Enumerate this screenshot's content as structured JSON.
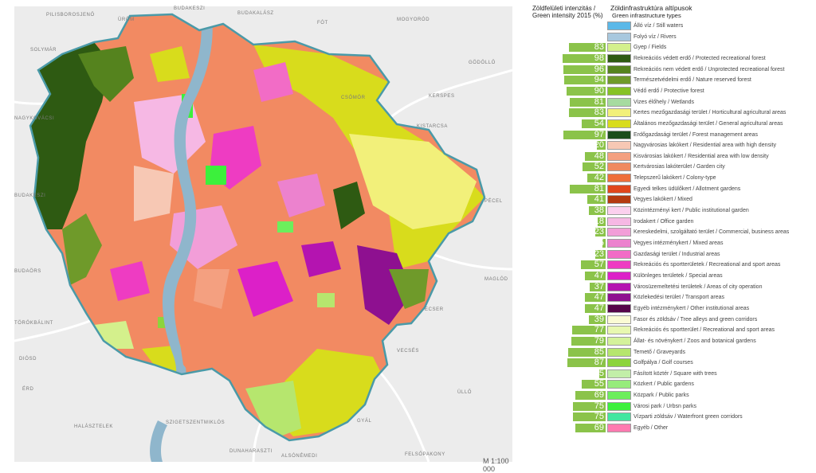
{
  "header": {
    "intensity_title": "Zöldfelületi intenzitás / Green intensity 2015 (%)",
    "types_title": "Zöldinfrastruktúra altípusok",
    "types_subtitle": "Green infrastructure types"
  },
  "scale": "M 1:100 000",
  "places": [
    "PILISBOROSJENŐ",
    "ÜRÖM",
    "BUDAKESZI",
    "BUDAKALÁSZ",
    "FÓT",
    "MOGYORÓD",
    "SOLYMÁR",
    "GÖDÖLLŐ",
    "NAGYKOVÁCSI",
    "CSÖMÖR",
    "KERSPES",
    "KISTARCSA",
    "BUDAKESZI",
    "PÉCEL",
    "BUDAÖRS",
    "MAGLÓD",
    "TÖRÖKBÁLINT",
    "ECSER",
    "DIÓSD",
    "VECSÉS",
    "ÉRD",
    "ÜLLŐ",
    "HALÁSZTELEK",
    "SZIGETSZENTMIKLÓS",
    "GYÁL",
    "DUNAHARASZTI",
    "FELSŐPAKONY",
    "ALSÓNÉMEDI"
  ],
  "legend": [
    {
      "value": null,
      "color": "#5bb8e8",
      "label": "Álló víz / Still waters"
    },
    {
      "value": null,
      "color": "#a8c8de",
      "label": "Folyó víz / Rivers"
    },
    {
      "value": 83,
      "color": "#d4f08c",
      "label": "Gyep / Fields"
    },
    {
      "value": 98,
      "color": "#2e5a12",
      "label": "Rekreációs védett erdő / Protected recreational forest"
    },
    {
      "value": 96,
      "color": "#55831e",
      "label": "Rekreációs nem védett erdő / Unprotected recreational forest"
    },
    {
      "value": 94,
      "color": "#6f9a2a",
      "label": "Természetvédelmi erdő / Nature reserved forest"
    },
    {
      "value": 90,
      "color": "#86c225",
      "label": "Védő erdő / Protective forest"
    },
    {
      "value": 81,
      "color": "#a7dba0",
      "label": "Vizes élőhely / Wetlands"
    },
    {
      "value": 83,
      "color": "#f2f07a",
      "label": "Kertes mezőgazdasági terület / Horticultural agricultural areas"
    },
    {
      "value": 54,
      "color": "#d8dc1c",
      "label": "Általános mezőgazdasági terület / General agricultural areas"
    },
    {
      "value": 97,
      "color": "#1b4e1b",
      "label": "Erdőgazdasági terület / Forest management areas"
    },
    {
      "value": 20,
      "color": "#f7c8b4",
      "label": "Nagyvárosias lakókert / Residential area with high density"
    },
    {
      "value": 48,
      "color": "#f4a080",
      "label": "Kisvárosias lakókert / Residential area with low density"
    },
    {
      "value": 52,
      "color": "#f08a60",
      "label": "Kertvárosias lakóterület / Garden city"
    },
    {
      "value": 42,
      "color": "#ee6e3a",
      "label": "Telepszerű lakókert / Colony-type"
    },
    {
      "value": 81,
      "color": "#e0461c",
      "label": "Egyedi telkes üdülőkert / Allotment gardens"
    },
    {
      "value": 41,
      "color": "#b43a10",
      "label": "Vegyes lakókert / Mixed"
    },
    {
      "value": 38,
      "color": "#fbd0ee",
      "label": "Közintézményi kert / Public institutional garden"
    },
    {
      "value": 18,
      "color": "#f6b8e4",
      "label": "Irodakert / Office garden"
    },
    {
      "value": 23,
      "color": "#f29ed8",
      "label": "Kereskedelmi, szolgáltató terület / Commercial, business areas"
    },
    {
      "value": 5,
      "color": "#ec82ce",
      "label": "Vegyes intézménykert / Mixed areas"
    },
    {
      "value": 23,
      "color": "#f26cc6",
      "label": "Gazdasági terület / Industrial areas"
    },
    {
      "value": 57,
      "color": "#ee3cc2",
      "label": "Rekreációs és sportterületek / Recreational and sport areas"
    },
    {
      "value": 47,
      "color": "#dc20c8",
      "label": "Különleges területek / Special areas"
    },
    {
      "value": 37,
      "color": "#b414b0",
      "label": "Városüzemeltetési területek / Areas of city operation"
    },
    {
      "value": 47,
      "color": "#8e1090",
      "label": "Közlekedési terület / Transport areas"
    },
    {
      "value": 47,
      "color": "#56064a",
      "label": "Egyéb intézménykert / Other institutional areas"
    },
    {
      "value": 39,
      "color": "#fbfbd4",
      "label": "Fasor és zöldsáv / Tree alleys and green corridors"
    },
    {
      "value": 77,
      "color": "#e8f8b0",
      "label": "Rekreációs és sportterület / Recreational and sport areas"
    },
    {
      "value": 79,
      "color": "#d4f29a",
      "label": "Állat- és növénykert / Zoos and botanical gardens"
    },
    {
      "value": 85,
      "color": "#b6e66e",
      "label": "Temető / Graveyards"
    },
    {
      "value": 87,
      "color": "#8cd43c",
      "label": "Golfpálya / Golf courses"
    },
    {
      "value": 15,
      "color": "#c2eea8",
      "label": "Fásított köztér / Square with trees"
    },
    {
      "value": 55,
      "color": "#96ec7c",
      "label": "Közkert / Public gardens"
    },
    {
      "value": 69,
      "color": "#6cee5c",
      "label": "Közpark / Public parks"
    },
    {
      "value": 75,
      "color": "#3cf03c",
      "label": "Városi park / Urbsn parks"
    },
    {
      "value": 75,
      "color": "#42e6a0",
      "label": "Vízparti zöldsáv / Waterfront green corridors"
    },
    {
      "value": 69,
      "color": "#ff7ab0",
      "label": "Egyéb / Other"
    }
  ]
}
